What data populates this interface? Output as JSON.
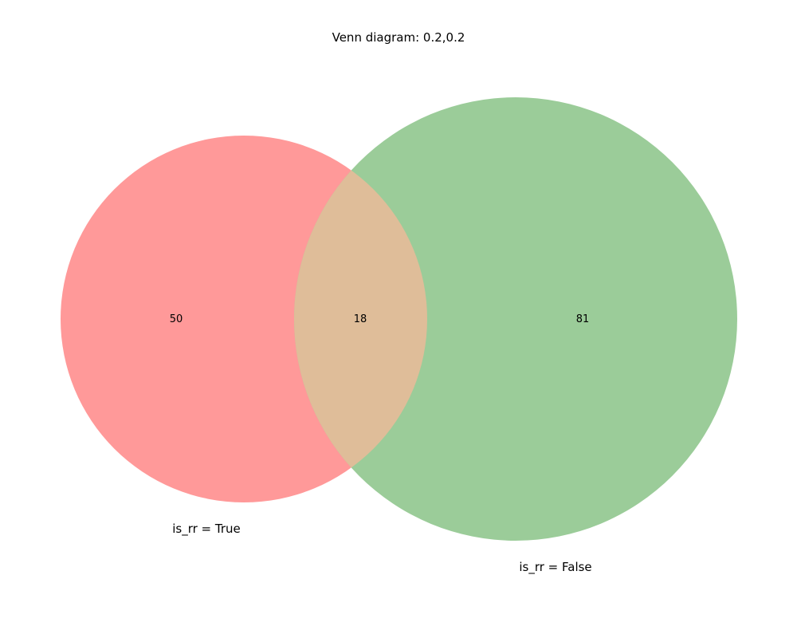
{
  "title": "Venn diagram: 0.2,0.2",
  "sets": [
    {
      "name": "is_rr = True",
      "color": "#ff9999"
    },
    {
      "name": "is_rr = False",
      "color": "#9bcc99"
    }
  ],
  "overlap_color": "#dfbd99",
  "regions": {
    "left_only": "50",
    "both": "18",
    "right_only": "81"
  },
  "chart_data": {
    "type": "venn",
    "title": "Venn diagram: 0.2,0.2",
    "sets": [
      "is_rr = True",
      "is_rr = False"
    ],
    "counts": {
      "is_rr = True only": 50,
      "both": 18,
      "is_rr = False only": 81
    }
  }
}
